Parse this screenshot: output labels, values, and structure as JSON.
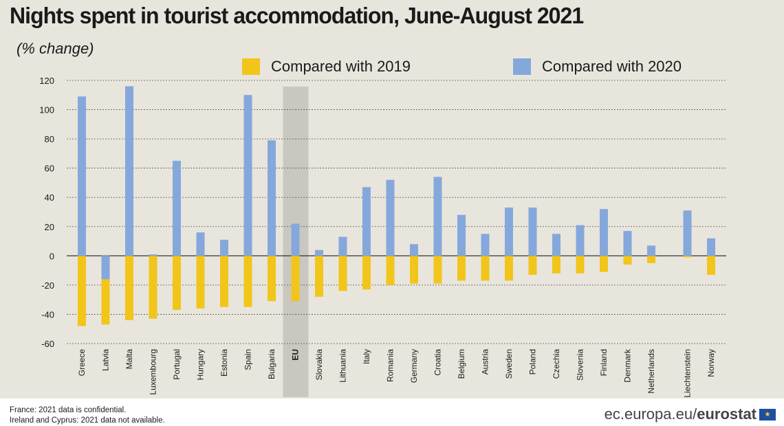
{
  "header": {
    "title": "Nights spent in tourist accommodation, June-August 2021",
    "subtitle": "(% change)"
  },
  "legend": {
    "items": [
      {
        "label": "Compared with 2019",
        "color": "#f2c51a"
      },
      {
        "label": "Compared with 2020",
        "color": "#85a8dc"
      }
    ]
  },
  "chart_data": {
    "type": "bar",
    "title": "Nights spent in tourist accommodation, June-August 2021",
    "subtitle": "(% change)",
    "xlabel": "",
    "ylabel": "",
    "ylim": [
      -60,
      120
    ],
    "yticks": [
      120,
      100,
      80,
      60,
      40,
      20,
      0,
      -20,
      -40,
      -60
    ],
    "grid": true,
    "highlight_category": "EU",
    "categories": [
      "Greece",
      "Latvia",
      "Malta",
      "Luxembourg",
      "Portugal",
      "Hungary",
      "Estonia",
      "Spain",
      "Bulgaria",
      "EU",
      "Slovakia",
      "Lithuania",
      "Italy",
      "Romania",
      "Germany",
      "Croatia",
      "Belgium",
      "Austria",
      "Sweden",
      "Poland",
      "Czechia",
      "Slovenia",
      "Finland",
      "Denmark",
      "Netherlands",
      "Liechtenstein",
      "Norway"
    ],
    "series": [
      {
        "name": "Compared with 2019",
        "color": "#f2c51a",
        "values": [
          -48,
          -47,
          -44,
          -43,
          -37,
          -36,
          -35,
          -35,
          -31,
          -31,
          -28,
          -24,
          -23,
          -20,
          -19,
          -19,
          -17,
          -17,
          -17,
          -13,
          -12,
          -12,
          -11,
          -6,
          -5,
          -1,
          -13
        ]
      },
      {
        "name": "Compared with 2020",
        "color": "#85a8dc",
        "values": [
          109,
          -16,
          116,
          1,
          65,
          16,
          11,
          110,
          79,
          22,
          4,
          13,
          47,
          52,
          8,
          54,
          28,
          15,
          33,
          33,
          15,
          21,
          32,
          17,
          7,
          31,
          12
        ]
      }
    ]
  },
  "footnotes": [
    "France: 2021 data is confidential.",
    "Ireland and Cyprus: 2021 data not available."
  ],
  "brand": {
    "url": "ec.europa.eu/",
    "name": "eurostat"
  }
}
